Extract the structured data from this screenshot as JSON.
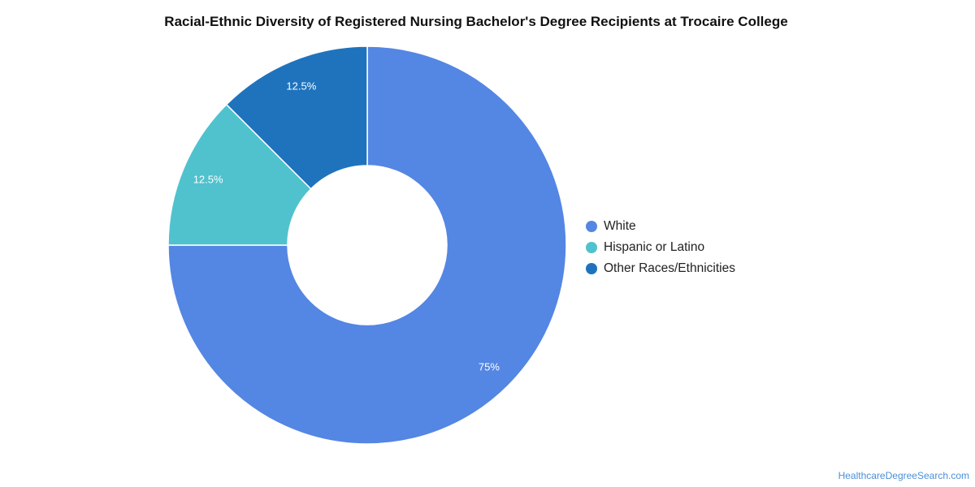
{
  "chart_data": {
    "type": "pie",
    "title": "Racial-Ethnic Diversity of Registered Nursing Bachelor's Degree Recipients at Trocaire College",
    "categories": [
      "White",
      "Hispanic or Latino",
      "Other Races/Ethnicities"
    ],
    "values": [
      75,
      12.5,
      12.5
    ],
    "data_labels": [
      "75%",
      "12.5%",
      "12.5%"
    ],
    "colors": [
      "#5486e3",
      "#50c2ce",
      "#1f73bd"
    ],
    "donut": true,
    "legend_position": "right"
  },
  "credit": "HealthcareDegreeSearch.com"
}
